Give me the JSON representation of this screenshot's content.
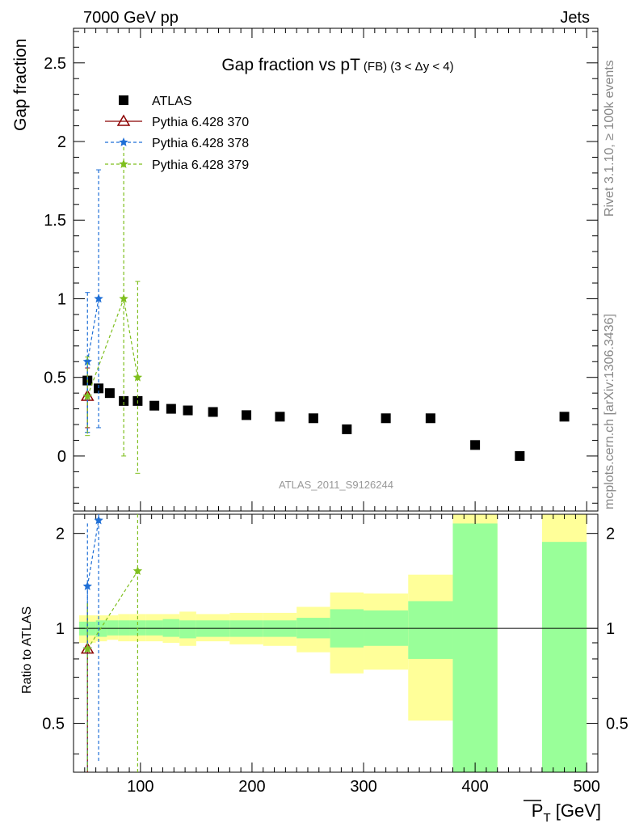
{
  "header": {
    "left": "7000 GeV pp",
    "right": "Jets"
  },
  "side_labels": {
    "rivet": "Rivet 3.1.10, ≥ 100k events",
    "mcplots": "mcplots.cern.ch [arXiv:1306.3436]"
  },
  "analysis_tag": "ATLAS_2011_S9126244",
  "colors": {
    "atlas": "#000000",
    "pythia370": "#8b0000",
    "pythia378": "#1f6fd6",
    "pythia379": "#7fbf1f",
    "band_stat": "#99ff99",
    "band_syst": "#ffff99"
  },
  "chart_data": [
    {
      "type": "scatter",
      "title": "Gap fraction vs pT",
      "title_sub": "(FB) (3 < Δy < 4)",
      "ylabel": "Gap fraction",
      "xlabel": "P_T [GeV]",
      "xlim": [
        40,
        510
      ],
      "ylim": [
        -0.35,
        2.72
      ],
      "x_ticks": [
        100,
        200,
        300,
        400,
        500
      ],
      "y_ticks": [
        0,
        0.5,
        1,
        1.5,
        2,
        2.5
      ],
      "y_tick_labels": [
        "0",
        "0.5",
        "1",
        "1.5",
        "2",
        "2.5"
      ],
      "legend_position": "top-left",
      "series": [
        {
          "name": "ATLAS",
          "marker": "square",
          "points": [
            {
              "x": 52.5,
              "y": 0.48
            },
            {
              "x": 62.5,
              "y": 0.43
            },
            {
              "x": 72.5,
              "y": 0.4
            },
            {
              "x": 85,
              "y": 0.35
            },
            {
              "x": 97.5,
              "y": 0.35
            },
            {
              "x": 112.5,
              "y": 0.32
            },
            {
              "x": 127.5,
              "y": 0.3
            },
            {
              "x": 142.5,
              "y": 0.29
            },
            {
              "x": 165,
              "y": 0.28
            },
            {
              "x": 195,
              "y": 0.26
            },
            {
              "x": 225,
              "y": 0.25
            },
            {
              "x": 255,
              "y": 0.24
            },
            {
              "x": 285,
              "y": 0.17
            },
            {
              "x": 320,
              "y": 0.24
            },
            {
              "x": 360,
              "y": 0.24
            },
            {
              "x": 400,
              "y": 0.07
            },
            {
              "x": 440,
              "y": 0.0
            },
            {
              "x": 480,
              "y": 0.25
            }
          ]
        },
        {
          "name": "Pythia 6.428 370",
          "marker": "triangle",
          "line": "solid",
          "points": [
            {
              "x": 52.5,
              "y": 0.38,
              "lo": 0.18,
              "hi": 0.56
            }
          ]
        },
        {
          "name": "Pythia 6.428 378",
          "marker": "star",
          "line": "dashed",
          "points": [
            {
              "x": 52.5,
              "y": 0.38,
              "lo": 0.15,
              "hi": 0.61
            },
            {
              "x": 52.5,
              "y": 0.6,
              "lo": 0.15,
              "hi": 1.04
            },
            {
              "x": 62.5,
              "y": 1.0,
              "lo": 0.18,
              "hi": 1.82
            }
          ]
        },
        {
          "name": "Pythia 6.428 379",
          "marker": "star",
          "line": "dashed",
          "points": [
            {
              "x": 52.5,
              "y": 0.38,
              "lo": 0.13,
              "hi": 0.63
            },
            {
              "x": 85,
              "y": 1.0,
              "lo": 0.0,
              "hi": 2.0
            },
            {
              "x": 97.5,
              "y": 0.5,
              "lo": -0.11,
              "hi": 1.11
            }
          ]
        }
      ]
    },
    {
      "type": "scatter",
      "ylabel": "Ratio to ATLAS",
      "xlabel": "P_T [GeV]",
      "xlim": [
        40,
        510
      ],
      "ylim": [
        0.35,
        2.3
      ],
      "y_scale": "log",
      "y_ticks": [
        0.5,
        1,
        2
      ],
      "y_tick_labels": [
        "0.5",
        "1",
        "2"
      ],
      "x_ticks": [
        100,
        200,
        300,
        400,
        500
      ],
      "x_tick_labels": [
        "100",
        "200",
        "300",
        "400",
        "500"
      ],
      "bands": [
        {
          "x0": 45,
          "x1": 60,
          "stat_lo": 0.95,
          "stat_hi": 1.05,
          "syst_lo": 0.9,
          "syst_hi": 1.1
        },
        {
          "x0": 60,
          "x1": 70,
          "stat_lo": 0.94,
          "stat_hi": 1.06,
          "syst_lo": 0.91,
          "syst_hi": 1.1
        },
        {
          "x0": 70,
          "x1": 80,
          "stat_lo": 0.95,
          "stat_hi": 1.06,
          "syst_lo": 0.92,
          "syst_hi": 1.1
        },
        {
          "x0": 80,
          "x1": 90,
          "stat_lo": 0.95,
          "stat_hi": 1.06,
          "syst_lo": 0.91,
          "syst_hi": 1.11
        },
        {
          "x0": 90,
          "x1": 105,
          "stat_lo": 0.95,
          "stat_hi": 1.06,
          "syst_lo": 0.91,
          "syst_hi": 1.11
        },
        {
          "x0": 105,
          "x1": 120,
          "stat_lo": 0.95,
          "stat_hi": 1.06,
          "syst_lo": 0.91,
          "syst_hi": 1.11
        },
        {
          "x0": 120,
          "x1": 135,
          "stat_lo": 0.94,
          "stat_hi": 1.07,
          "syst_lo": 0.9,
          "syst_hi": 1.11
        },
        {
          "x0": 135,
          "x1": 150,
          "stat_lo": 0.93,
          "stat_hi": 1.06,
          "syst_lo": 0.88,
          "syst_hi": 1.13
        },
        {
          "x0": 150,
          "x1": 180,
          "stat_lo": 0.94,
          "stat_hi": 1.06,
          "syst_lo": 0.91,
          "syst_hi": 1.11
        },
        {
          "x0": 180,
          "x1": 210,
          "stat_lo": 0.94,
          "stat_hi": 1.06,
          "syst_lo": 0.89,
          "syst_hi": 1.12
        },
        {
          "x0": 210,
          "x1": 240,
          "stat_lo": 0.94,
          "stat_hi": 1.06,
          "syst_lo": 0.88,
          "syst_hi": 1.12
        },
        {
          "x0": 240,
          "x1": 270,
          "stat_lo": 0.93,
          "stat_hi": 1.08,
          "syst_lo": 0.84,
          "syst_hi": 1.17
        },
        {
          "x0": 270,
          "x1": 300,
          "stat_lo": 0.87,
          "stat_hi": 1.15,
          "syst_lo": 0.72,
          "syst_hi": 1.3
        },
        {
          "x0": 300,
          "x1": 340,
          "stat_lo": 0.88,
          "stat_hi": 1.14,
          "syst_lo": 0.74,
          "syst_hi": 1.29
        },
        {
          "x0": 340,
          "x1": 380,
          "stat_lo": 0.8,
          "stat_hi": 1.22,
          "syst_lo": 0.51,
          "syst_hi": 1.48
        },
        {
          "x0": 380,
          "x1": 420,
          "stat_lo": 0.35,
          "stat_hi": 2.15,
          "syst_lo": 0.35,
          "syst_hi": 2.3
        },
        {
          "x0": 460,
          "x1": 500,
          "stat_lo": 0.35,
          "stat_hi": 1.88,
          "syst_lo": 0.35,
          "syst_hi": 2.3
        }
      ],
      "series": [
        {
          "name": "Pythia 6.428 370",
          "points": [
            {
              "x": 52.5,
              "y": 0.86,
              "lo": 0.35,
              "hi": 1.2
            }
          ]
        },
        {
          "name": "Pythia 6.428 378",
          "points": [
            {
              "x": 52.5,
              "y": 0.86,
              "lo": 0.35,
              "hi": 1.2
            },
            {
              "x": 52.5,
              "y": 1.36,
              "lo": 0.35,
              "hi": 2.15
            },
            {
              "x": 62.5,
              "y": 2.2,
              "lo": 0.38,
              "hi": 2.3
            }
          ]
        },
        {
          "name": "Pythia 6.428 379",
          "points": [
            {
              "x": 52.5,
              "y": 0.86,
              "lo": 0.35,
              "hi": 1.2
            },
            {
              "x": 97.5,
              "y": 1.52,
              "lo": 0.35,
              "hi": 2.3
            }
          ]
        }
      ]
    }
  ]
}
